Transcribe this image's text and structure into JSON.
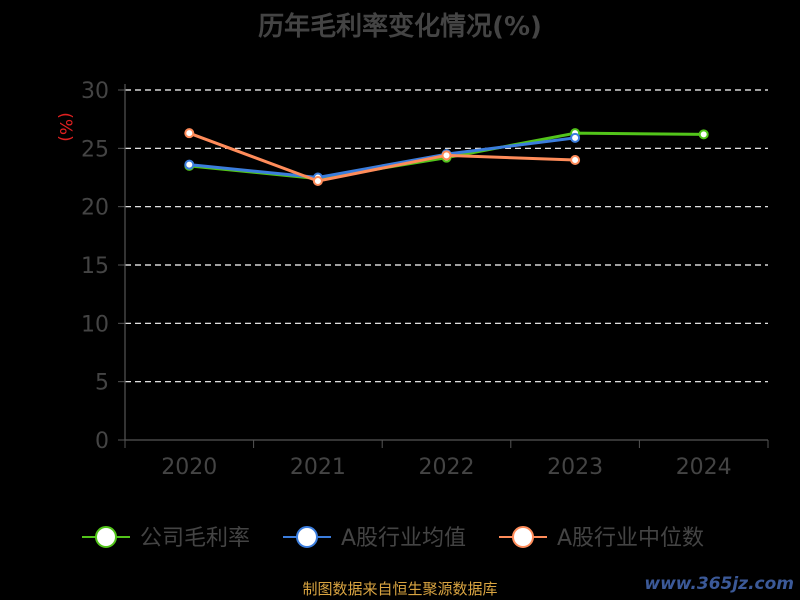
{
  "chart_data": {
    "type": "line",
    "title": "历年毛利率变化情况(%)",
    "ylabel": "(%)",
    "xlabel": "",
    "categories": [
      "2020",
      "2021",
      "2022",
      "2023",
      "2024"
    ],
    "ylim": [
      0,
      30
    ],
    "yticks": [
      "0",
      "5",
      "10",
      "15",
      "20",
      "25",
      "30"
    ],
    "grid": true,
    "legend_position": "bottom",
    "series": [
      {
        "name": "公司毛利率",
        "color": "#52c41a",
        "values": [
          23.5,
          22.4,
          24.2,
          26.3,
          26.2
        ]
      },
      {
        "name": "A股行业均值",
        "color": "#3b7ddd",
        "values": [
          23.6,
          22.5,
          24.5,
          25.9,
          null
        ]
      },
      {
        "name": "A股行业中位数",
        "color": "#ff8c5a",
        "values": [
          26.3,
          22.2,
          24.4,
          24.0,
          null
        ]
      }
    ]
  },
  "footer": {
    "source": "制图数据来自恒生聚源数据库",
    "watermark": "www.365jz.com"
  }
}
